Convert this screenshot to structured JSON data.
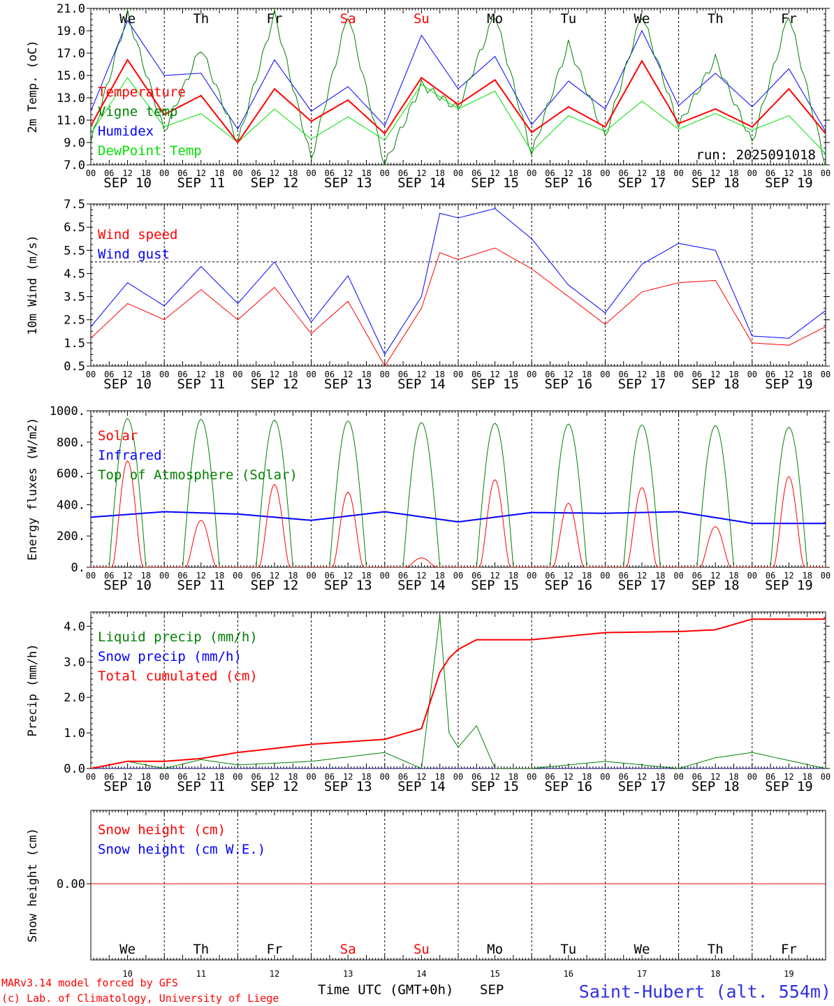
{
  "footer": {
    "model": "MARv3.14 model forced by GFS",
    "copyright": "(c) Lab. of Climatology, University of Liege",
    "xaxis_title": "Time UTC (GMT+0h)",
    "month": "SEP",
    "station": "Saint-Hubert (alt. 554m)"
  },
  "colors": {
    "red": "#ff0000",
    "green": "#008000",
    "blue": "#0000ff",
    "lime": "#00e000",
    "weekend": "#ff0000"
  },
  "days": [
    {
      "abbr": "We",
      "date": "SEP 10",
      "num": "10",
      "weekend": false
    },
    {
      "abbr": "Th",
      "date": "SEP 11",
      "num": "11",
      "weekend": false
    },
    {
      "abbr": "Fr",
      "date": "SEP 12",
      "num": "12",
      "weekend": false
    },
    {
      "abbr": "Sa",
      "date": "SEP 13",
      "num": "13",
      "weekend": true
    },
    {
      "abbr": "Su",
      "date": "SEP 14",
      "num": "14",
      "weekend": true
    },
    {
      "abbr": "Mo",
      "date": "SEP 15",
      "num": "15",
      "weekend": false
    },
    {
      "abbr": "Tu",
      "date": "SEP 16",
      "num": "16",
      "weekend": false
    },
    {
      "abbr": "We",
      "date": "SEP 17",
      "num": "17",
      "weekend": false
    },
    {
      "abbr": "Th",
      "date": "SEP 18",
      "num": "18",
      "weekend": false
    },
    {
      "abbr": "Fr",
      "date": "SEP 19",
      "num": "19",
      "weekend": false
    }
  ],
  "hour_labels": [
    "00",
    "06",
    "12",
    "18"
  ],
  "chart_data": [
    {
      "type": "line",
      "ylabel": "2m Temp. (oC)",
      "ylim": [
        7.0,
        21.0
      ],
      "yticks": [
        "7.0",
        "9.0",
        "11.0",
        "13.0",
        "15.0",
        "17.0",
        "19.0",
        "21.0"
      ],
      "annotation": "run: 2025091018",
      "x_hours": [
        0,
        12,
        24,
        36,
        48,
        60,
        72,
        84,
        96,
        108,
        120,
        132,
        144,
        156,
        168,
        180,
        192,
        204,
        216,
        228,
        240
      ],
      "series": [
        {
          "name": "Temperature",
          "color": "#ff0000",
          "width": 2,
          "values": [
            10.5,
            16.4,
            11.5,
            13.2,
            9.0,
            13.8,
            10.9,
            12.8,
            9.8,
            14.8,
            12.4,
            14.6,
            9.9,
            12.2,
            10.4,
            16.3,
            10.7,
            12.0,
            10.4,
            13.8,
            9.8
          ]
        },
        {
          "name": "Vigne temp",
          "color": "#008000",
          "width": 1,
          "values": [
            9.0,
            20.5,
            10.0,
            17.5,
            9.0,
            20.5,
            7.5,
            20.5,
            7.0,
            14.2,
            12.0,
            20.5,
            8.0,
            17.8,
            9.5,
            20.5,
            10.5,
            16.5,
            9.0,
            20.5,
            7.0
          ]
        },
        {
          "name": "Humidex",
          "color": "#0000ff",
          "width": 1,
          "values": [
            11.8,
            19.9,
            15.0,
            15.2,
            10.2,
            16.4,
            11.8,
            14.0,
            10.5,
            18.6,
            13.8,
            16.7,
            10.6,
            14.5,
            12.0,
            19.0,
            12.3,
            15.2,
            12.2,
            15.6,
            10.0
          ]
        },
        {
          "name": "DewPoint Temp",
          "color": "#00e000",
          "width": 1,
          "values": [
            9.8,
            14.8,
            10.4,
            11.6,
            9.0,
            12.0,
            9.3,
            11.3,
            9.2,
            14.2,
            12.0,
            13.6,
            8.2,
            11.4,
            10.0,
            12.7,
            10.2,
            11.6,
            10.1,
            11.4,
            8.0
          ]
        }
      ]
    },
    {
      "type": "line",
      "ylabel": "10m Wind (m/s)",
      "ylim": [
        0.5,
        7.5
      ],
      "yticks": [
        "0.5",
        "1.5",
        "2.5",
        "3.5",
        "4.5",
        "5.5",
        "6.5",
        "7.5"
      ],
      "hline": 5.0,
      "x_hours": [
        0,
        12,
        24,
        36,
        48,
        60,
        72,
        84,
        96,
        108,
        114,
        120,
        132,
        144,
        156,
        168,
        180,
        192,
        204,
        216,
        228,
        240
      ],
      "series": [
        {
          "name": "Wind speed",
          "color": "#ff0000",
          "width": 1,
          "values": [
            1.7,
            3.2,
            2.5,
            3.8,
            2.5,
            3.9,
            1.9,
            3.3,
            0.5,
            3.0,
            5.4,
            5.1,
            5.6,
            4.7,
            3.5,
            2.3,
            3.7,
            4.1,
            4.2,
            1.5,
            1.4,
            2.2
          ]
        },
        {
          "name": "Wind gust",
          "color": "#0000ff",
          "width": 1,
          "values": [
            2.2,
            4.1,
            3.1,
            4.8,
            3.2,
            5.0,
            2.4,
            4.4,
            1.0,
            3.5,
            7.1,
            6.9,
            7.3,
            6.0,
            4.0,
            2.8,
            4.9,
            5.8,
            5.5,
            1.8,
            1.7,
            2.9
          ]
        }
      ]
    },
    {
      "type": "line",
      "ylabel": "Energy fluxes (W/m2)",
      "ylim": [
        0,
        1000
      ],
      "yticks": [
        "0.",
        "200.",
        "400.",
        "600.",
        "800.",
        "1000."
      ],
      "daily_hours": [
        0,
        6,
        12,
        18
      ],
      "series": [
        {
          "name": "Solar",
          "color": "#ff0000",
          "width": 1,
          "daily_peaks": [
            680,
            300,
            530,
            480,
            60,
            560,
            410,
            510,
            260,
            580
          ]
        },
        {
          "name": "Infrared",
          "color": "#0000ff",
          "width": 2,
          "daily_levels": [
            320,
            355,
            340,
            300,
            355,
            290,
            350,
            345,
            355,
            280
          ]
        },
        {
          "name": "Top of Atmosphere (Solar)",
          "color": "#008000",
          "width": 1,
          "daily_peaks": [
            950,
            945,
            940,
            935,
            925,
            920,
            915,
            910,
            905,
            895
          ]
        }
      ]
    },
    {
      "type": "line",
      "ylabel": "Precip (mm/h)",
      "ylim": [
        0,
        4.4
      ],
      "yticks": [
        "0.0",
        "1.0",
        "2.0",
        "3.0",
        "4.0"
      ],
      "x_hours": [
        0,
        12,
        24,
        36,
        48,
        72,
        96,
        108,
        114,
        117,
        120,
        126,
        132,
        144,
        168,
        192,
        204,
        216,
        240
      ],
      "series": [
        {
          "name": "Liquid precip (mm/h)",
          "color": "#008000",
          "width": 1,
          "values": [
            0.0,
            0.2,
            0.0,
            0.25,
            0.1,
            0.2,
            0.45,
            0.0,
            4.3,
            1.0,
            0.6,
            1.2,
            0.0,
            0.0,
            0.2,
            0.0,
            0.3,
            0.45,
            0.0
          ]
        },
        {
          "name": "Snow precip (mm/h)",
          "color": "#0000ff",
          "width": 1,
          "values": [
            0,
            0,
            0,
            0,
            0,
            0,
            0,
            0,
            0,
            0,
            0,
            0,
            0,
            0,
            0,
            0,
            0,
            0,
            0
          ]
        },
        {
          "name": "Total cumulated (cm)",
          "color": "#ff0000",
          "width": 2,
          "values": [
            0.0,
            0.2,
            0.2,
            0.28,
            0.45,
            0.68,
            0.82,
            1.12,
            2.7,
            3.1,
            3.35,
            3.62,
            3.62,
            3.62,
            3.82,
            3.85,
            3.9,
            4.2,
            4.2
          ]
        }
      ]
    },
    {
      "type": "line",
      "ylabel": "Snow height (cm)",
      "yticks": [
        "0.00"
      ],
      "series": [
        {
          "name": "Snow height (cm)",
          "color": "#ff0000",
          "width": 1,
          "values": [
            0.0,
            0.0
          ]
        },
        {
          "name": "Snow height (cm W.E.)",
          "color": "#0000ff",
          "width": 1,
          "values": [
            0.0,
            0.0
          ]
        }
      ]
    }
  ]
}
